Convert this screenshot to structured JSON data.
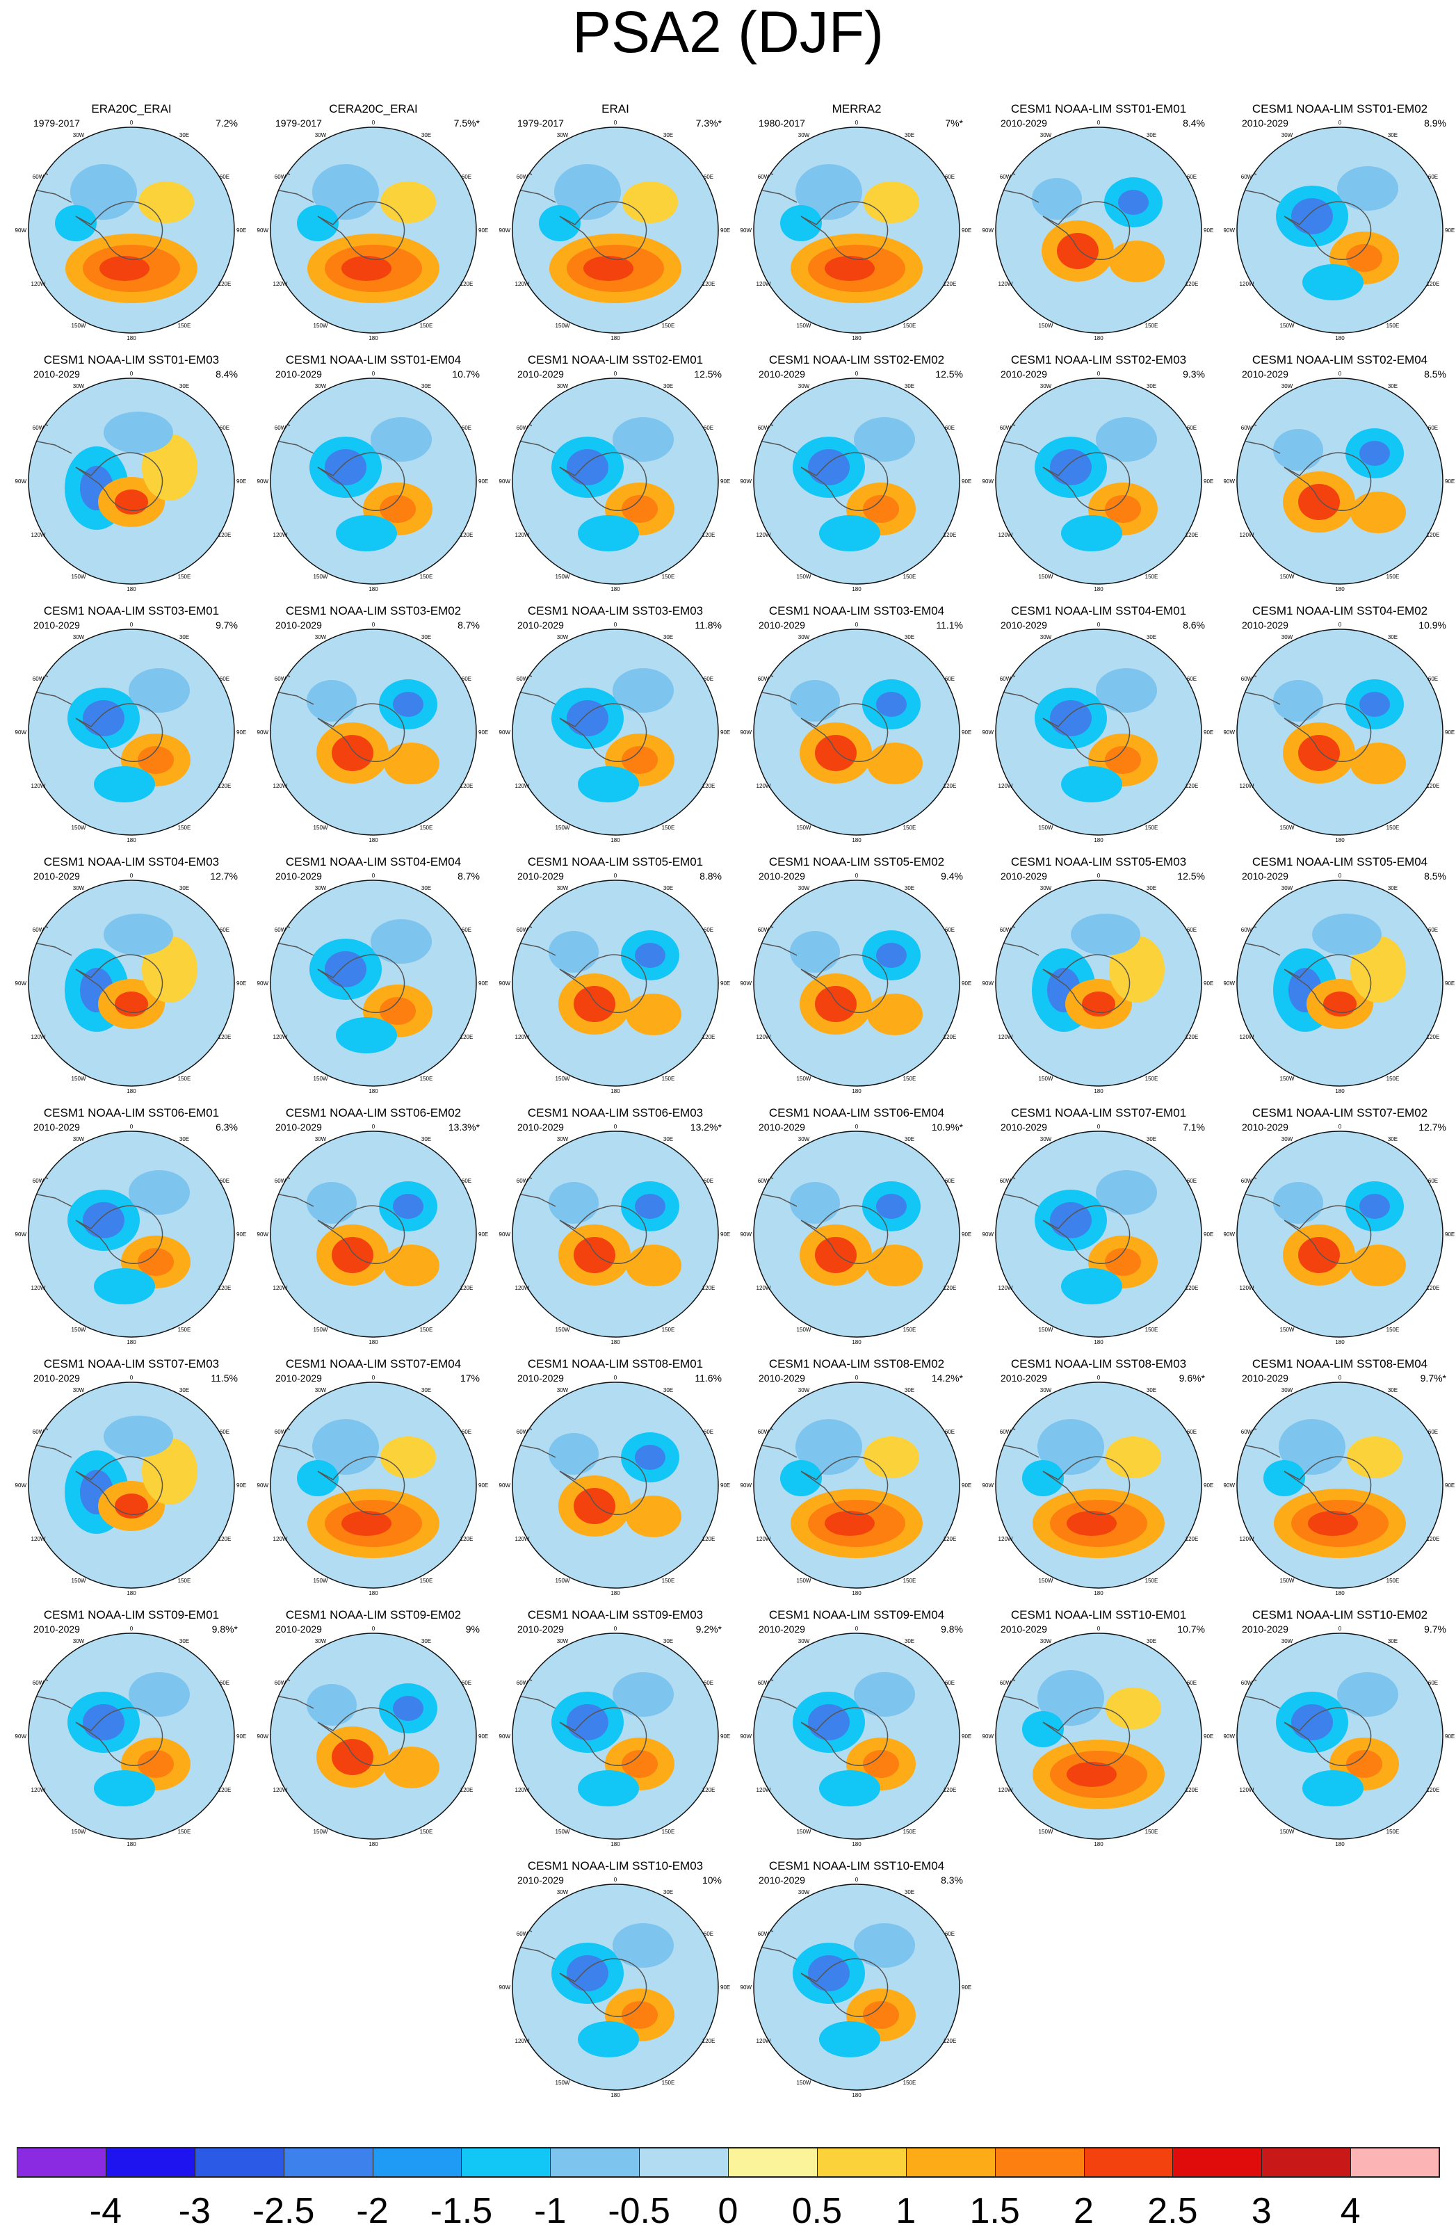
{
  "figure": {
    "title": "PSA2 (DJF)"
  },
  "colors": {
    "scale": [
      "#8a2be2",
      "#1e14f0",
      "#2a5ae6",
      "#3d82ec",
      "#1f9bf5",
      "#12c6f6",
      "#7dc4ef",
      "#b2dcf2",
      "#fcf49a",
      "#fcd23a",
      "#fdac18",
      "#fc7f10",
      "#f4420e",
      "#e00c0c",
      "#c81818",
      "#fcb4b4"
    ],
    "coast": "#555555",
    "frame": "#111111"
  },
  "colorbar": {
    "tick_labels": [
      "-4",
      "-3",
      "-2.5",
      "-2",
      "-1.5",
      "-1",
      "-0.5",
      "0",
      "0.5",
      "1",
      "1.5",
      "2",
      "2.5",
      "3",
      "4"
    ]
  },
  "map_labels": {
    "top": "0",
    "top_left": "30W",
    "top_right": "30E",
    "upper_left": "60W",
    "upper_right": "60E",
    "left": "90W",
    "right": "90E",
    "lower_left": "120W",
    "lower_right": "120E",
    "bottom_left": "150W",
    "bottom_right": "150E",
    "bottom": "180"
  },
  "panels": [
    {
      "title": "ERA20C_ERAI",
      "period": "1979-2017",
      "pct": "7.2%",
      "pattern": "h"
    },
    {
      "title": "CERA20C_ERAI",
      "period": "1979-2017",
      "pct": "7.5%*",
      "pattern": "h"
    },
    {
      "title": "ERAI",
      "period": "1979-2017",
      "pct": "7.3%*",
      "pattern": "h"
    },
    {
      "title": "MERRA2",
      "period": "1980-2017",
      "pct": "7%*",
      "pattern": "h"
    },
    {
      "title": "CESM1 NOAA-LIM SST01-EM01",
      "period": "2010-2029",
      "pct": "8.4%",
      "pattern": "a"
    },
    {
      "title": "CESM1 NOAA-LIM SST01-EM02",
      "period": "2010-2029",
      "pct": "8.9%",
      "pattern": "b"
    },
    {
      "title": "CESM1 NOAA-LIM SST01-EM03",
      "period": "2010-2029",
      "pct": "8.4%",
      "pattern": "c"
    },
    {
      "title": "CESM1 NOAA-LIM SST01-EM04",
      "period": "2010-2029",
      "pct": "10.7%",
      "pattern": "b"
    },
    {
      "title": "CESM1 NOAA-LIM SST02-EM01",
      "period": "2010-2029",
      "pct": "12.5%",
      "pattern": "b"
    },
    {
      "title": "CESM1 NOAA-LIM SST02-EM02",
      "period": "2010-2029",
      "pct": "12.5%",
      "pattern": "b"
    },
    {
      "title": "CESM1 NOAA-LIM SST02-EM03",
      "period": "2010-2029",
      "pct": "9.3%",
      "pattern": "b"
    },
    {
      "title": "CESM1 NOAA-LIM SST02-EM04",
      "period": "2010-2029",
      "pct": "8.5%",
      "pattern": "a"
    },
    {
      "title": "CESM1 NOAA-LIM SST03-EM01",
      "period": "2010-2029",
      "pct": "9.7%",
      "pattern": "b"
    },
    {
      "title": "CESM1 NOAA-LIM SST03-EM02",
      "period": "2010-2029",
      "pct": "8.7%",
      "pattern": "a"
    },
    {
      "title": "CESM1 NOAA-LIM SST03-EM03",
      "period": "2010-2029",
      "pct": "11.8%",
      "pattern": "b"
    },
    {
      "title": "CESM1 NOAA-LIM SST03-EM04",
      "period": "2010-2029",
      "pct": "11.1%",
      "pattern": "a"
    },
    {
      "title": "CESM1 NOAA-LIM SST04-EM01",
      "period": "2010-2029",
      "pct": "8.6%",
      "pattern": "b"
    },
    {
      "title": "CESM1 NOAA-LIM SST04-EM02",
      "period": "2010-2029",
      "pct": "10.9%",
      "pattern": "a"
    },
    {
      "title": "CESM1 NOAA-LIM SST04-EM03",
      "period": "2010-2029",
      "pct": "12.7%",
      "pattern": "c"
    },
    {
      "title": "CESM1 NOAA-LIM SST04-EM04",
      "period": "2010-2029",
      "pct": "8.7%",
      "pattern": "b"
    },
    {
      "title": "CESM1 NOAA-LIM SST05-EM01",
      "period": "2010-2029",
      "pct": "8.8%",
      "pattern": "a"
    },
    {
      "title": "CESM1 NOAA-LIM SST05-EM02",
      "period": "2010-2029",
      "pct": "9.4%",
      "pattern": "a"
    },
    {
      "title": "CESM1 NOAA-LIM SST05-EM03",
      "period": "2010-2029",
      "pct": "12.5%",
      "pattern": "c"
    },
    {
      "title": "CESM1 NOAA-LIM SST05-EM04",
      "period": "2010-2029",
      "pct": "8.5%",
      "pattern": "c"
    },
    {
      "title": "CESM1 NOAA-LIM SST06-EM01",
      "period": "2010-2029",
      "pct": "6.3%",
      "pattern": "b"
    },
    {
      "title": "CESM1 NOAA-LIM SST06-EM02",
      "period": "2010-2029",
      "pct": "13.3%*",
      "pattern": "a"
    },
    {
      "title": "CESM1 NOAA-LIM SST06-EM03",
      "period": "2010-2029",
      "pct": "13.2%*",
      "pattern": "a"
    },
    {
      "title": "CESM1 NOAA-LIM SST06-EM04",
      "period": "2010-2029",
      "pct": "10.9%*",
      "pattern": "a"
    },
    {
      "title": "CESM1 NOAA-LIM SST07-EM01",
      "period": "2010-2029",
      "pct": "7.1%",
      "pattern": "b"
    },
    {
      "title": "CESM1 NOAA-LIM SST07-EM02",
      "period": "2010-2029",
      "pct": "12.7%",
      "pattern": "a"
    },
    {
      "title": "CESM1 NOAA-LIM SST07-EM03",
      "period": "2010-2029",
      "pct": "11.5%",
      "pattern": "c"
    },
    {
      "title": "CESM1 NOAA-LIM SST07-EM04",
      "period": "2010-2029",
      "pct": "17%",
      "pattern": "h"
    },
    {
      "title": "CESM1 NOAA-LIM SST08-EM01",
      "period": "2010-2029",
      "pct": "11.6%",
      "pattern": "a"
    },
    {
      "title": "CESM1 NOAA-LIM SST08-EM02",
      "period": "2010-2029",
      "pct": "14.2%*",
      "pattern": "h"
    },
    {
      "title": "CESM1 NOAA-LIM SST08-EM03",
      "period": "2010-2029",
      "pct": "9.6%*",
      "pattern": "h"
    },
    {
      "title": "CESM1 NOAA-LIM SST08-EM04",
      "period": "2010-2029",
      "pct": "9.7%*",
      "pattern": "h"
    },
    {
      "title": "CESM1 NOAA-LIM SST09-EM01",
      "period": "2010-2029",
      "pct": "9.8%*",
      "pattern": "b"
    },
    {
      "title": "CESM1 NOAA-LIM SST09-EM02",
      "period": "2010-2029",
      "pct": "9%",
      "pattern": "a"
    },
    {
      "title": "CESM1 NOAA-LIM SST09-EM03",
      "period": "2010-2029",
      "pct": "9.2%*",
      "pattern": "b"
    },
    {
      "title": "CESM1 NOAA-LIM SST09-EM04",
      "period": "2010-2029",
      "pct": "9.8%",
      "pattern": "b"
    },
    {
      "title": "CESM1 NOAA-LIM SST10-EM01",
      "period": "2010-2029",
      "pct": "10.7%",
      "pattern": "h"
    },
    {
      "title": "CESM1 NOAA-LIM SST10-EM02",
      "period": "2010-2029",
      "pct": "9.7%",
      "pattern": "b"
    },
    {
      "title": "CESM1 NOAA-LIM SST10-EM03",
      "period": "2010-2029",
      "pct": "10%",
      "pattern": "b"
    },
    {
      "title": "CESM1 NOAA-LIM SST10-EM04",
      "period": "2010-2029",
      "pct": "8.3%",
      "pattern": "b"
    }
  ]
}
